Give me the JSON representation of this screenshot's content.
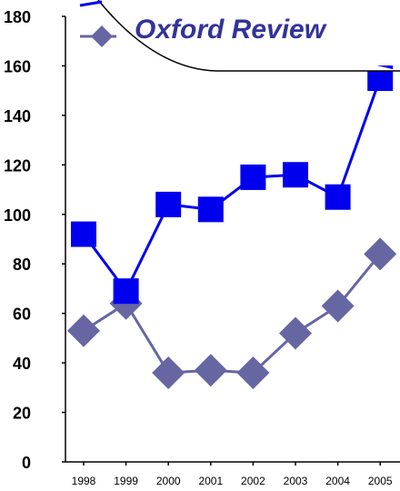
{
  "chart_data": {
    "type": "line",
    "title": "Oxford Review",
    "categories": [
      "1998",
      "1999",
      "2000",
      "2001",
      "2002",
      "2003",
      "2004",
      "2005"
    ],
    "ylim": [
      0,
      180
    ],
    "yticks": [
      "0",
      "20",
      "40",
      "60",
      "80",
      "100",
      "120",
      "140",
      "160",
      "180"
    ],
    "grid": false,
    "legend_position": "top",
    "series": [
      {
        "marker": "square",
        "color": "#0000ee",
        "values": [
          92,
          69,
          104,
          102,
          115,
          116,
          107,
          155
        ]
      },
      {
        "marker": "diamond",
        "color": "#6666a3",
        "values": [
          53,
          64,
          36,
          37,
          36,
          52,
          63,
          84
        ]
      }
    ]
  }
}
